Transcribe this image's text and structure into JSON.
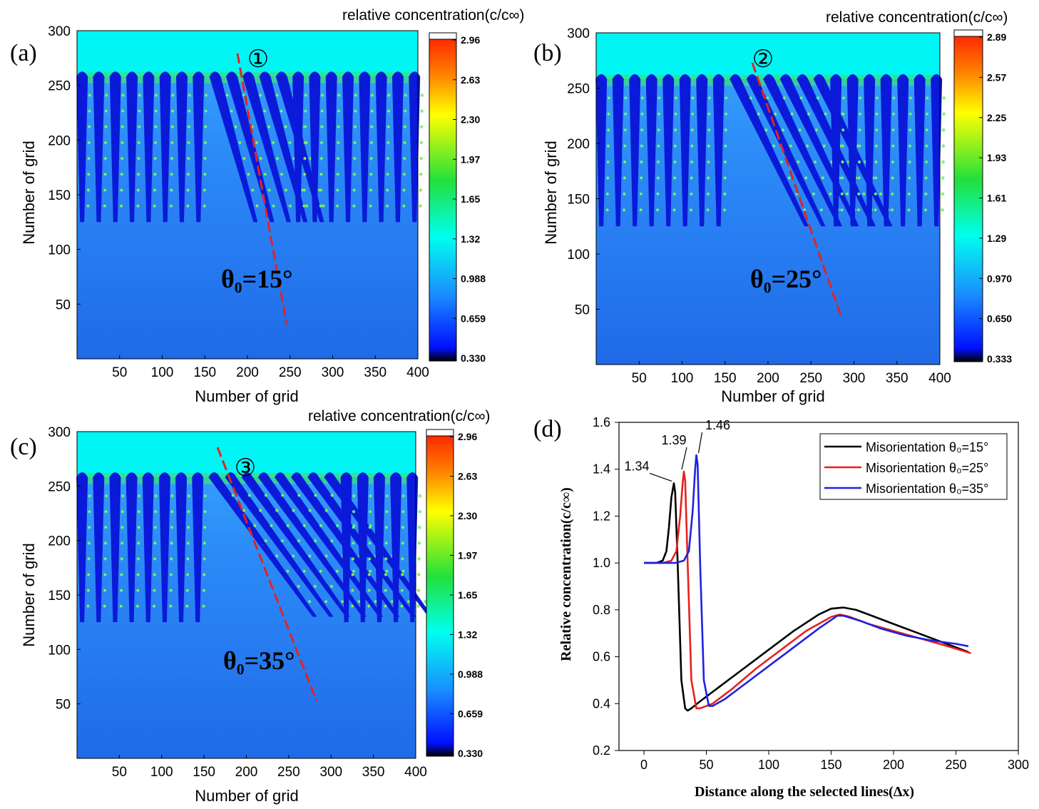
{
  "panels": [
    {
      "letter": "(a)",
      "cbar_title": "relative concentration(c/c∞)",
      "cbar_ticks": [
        "2.96",
        "2.63",
        "2.30",
        "1.97",
        "1.65",
        "1.32",
        "0.988",
        "0.659",
        "0.330"
      ],
      "angle_label": "θ₀=15°",
      "line_label": "①",
      "xlabel": "Number of grid",
      "ylabel": "Number of grid",
      "xticks": [
        50,
        100,
        150,
        200,
        250,
        300,
        350,
        400
      ],
      "yticks": [
        50,
        100,
        150,
        200,
        250,
        300
      ],
      "range": [
        0,
        400
      ],
      "yrange": [
        0,
        300
      ]
    },
    {
      "letter": "(b)",
      "cbar_title": "relative concentration(c/c∞)",
      "cbar_ticks": [
        "2.89",
        "2.57",
        "2.25",
        "1.93",
        "1.61",
        "1.29",
        "0.970",
        "0.650",
        "0.333"
      ],
      "angle_label": "θ₀=25°",
      "line_label": "②",
      "xlabel": "Number of grid",
      "ylabel": "Number of grid",
      "xticks": [
        50,
        100,
        150,
        200,
        250,
        300,
        350,
        400
      ],
      "yticks": [
        50,
        100,
        150,
        200,
        250,
        300
      ],
      "range": [
        0,
        400
      ],
      "yrange": [
        0,
        300
      ]
    },
    {
      "letter": "(c)",
      "cbar_title": "relative concentration(c/c∞)",
      "cbar_ticks": [
        "2.96",
        "2.63",
        "2.30",
        "1.97",
        "1.65",
        "1.32",
        "0.988",
        "0.659",
        "0.330"
      ],
      "angle_label": "θ₀=35°",
      "line_label": "③",
      "xlabel": "Number of grid",
      "ylabel": "Number of grid",
      "xticks": [
        50,
        100,
        150,
        200,
        250,
        300,
        350,
        400
      ],
      "yticks": [
        50,
        100,
        150,
        200,
        250,
        300
      ],
      "range": [
        0,
        400
      ],
      "yrange": [
        0,
        300
      ]
    }
  ],
  "chart_data": {
    "type": "line",
    "letter": "(d)",
    "xlabel": "Distance along the selected lines(Δx)",
    "ylabel": "Relative concentration(c/c∞)",
    "xlim": [
      -20,
      300
    ],
    "ylim": [
      0.2,
      1.6
    ],
    "xticks": [
      0,
      50,
      100,
      150,
      200,
      250,
      300
    ],
    "yticks": [
      0.2,
      0.4,
      0.6,
      0.8,
      1.0,
      1.2,
      1.4,
      1.6
    ],
    "legend_position": "top-right",
    "series": [
      {
        "name": "Misorientation θ₀=15°",
        "color": "#000000",
        "x": [
          0,
          10,
          15,
          18,
          20,
          22,
          24,
          25,
          27,
          30,
          33,
          35,
          38,
          45,
          60,
          80,
          100,
          120,
          140,
          150,
          160,
          170,
          180,
          200,
          220,
          240,
          260
        ],
        "y": [
          1.0,
          1.0,
          1.01,
          1.05,
          1.15,
          1.28,
          1.34,
          1.3,
          1.0,
          0.5,
          0.38,
          0.37,
          0.38,
          0.41,
          0.47,
          0.55,
          0.63,
          0.71,
          0.78,
          0.805,
          0.81,
          0.8,
          0.78,
          0.74,
          0.7,
          0.66,
          0.62
        ]
      },
      {
        "name": "Misorientation θ₀=25°",
        "color": "#e8201c",
        "x": [
          0,
          15,
          22,
          26,
          29,
          31,
          32,
          33,
          35,
          38,
          42,
          45,
          55,
          70,
          90,
          110,
          130,
          150,
          157,
          165,
          180,
          200,
          220,
          240,
          262
        ],
        "y": [
          1.0,
          1.0,
          1.01,
          1.05,
          1.2,
          1.34,
          1.39,
          1.35,
          1.0,
          0.5,
          0.38,
          0.38,
          0.4,
          0.46,
          0.55,
          0.63,
          0.71,
          0.77,
          0.78,
          0.77,
          0.74,
          0.71,
          0.68,
          0.65,
          0.615
        ]
      },
      {
        "name": "Misorientation θ₀=35°",
        "color": "#1e22e0",
        "x": [
          0,
          25,
          32,
          36,
          39,
          41,
          42,
          43,
          45,
          48,
          52,
          55,
          65,
          80,
          100,
          120,
          140,
          155,
          160,
          175,
          190,
          210,
          230,
          250,
          260
        ],
        "y": [
          1.0,
          1.0,
          1.01,
          1.05,
          1.22,
          1.4,
          1.46,
          1.42,
          1.0,
          0.5,
          0.39,
          0.39,
          0.42,
          0.48,
          0.56,
          0.64,
          0.72,
          0.775,
          0.775,
          0.75,
          0.72,
          0.69,
          0.67,
          0.655,
          0.645
        ]
      }
    ],
    "peak_labels": [
      {
        "text": "1.34",
        "x": 24,
        "y": 1.34
      },
      {
        "text": "1.39",
        "x": 32,
        "y": 1.39
      },
      {
        "text": "1.46",
        "x": 42,
        "y": 1.46
      }
    ]
  }
}
